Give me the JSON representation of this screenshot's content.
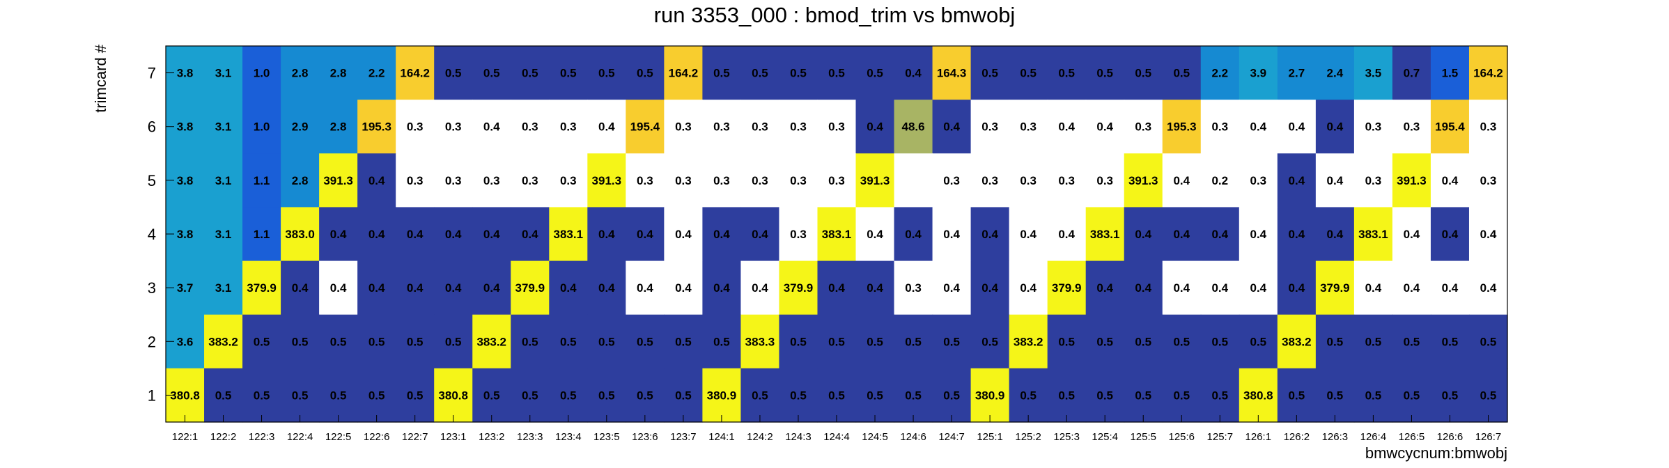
{
  "chart_data": {
    "type": "heatmap",
    "title": "run 3353_000 : bmod_trim vs bmwobj",
    "xlabel": "bmwcycnum:bmwobj",
    "ylabel": "trimcard #",
    "x_categories": [
      "122:1",
      "122:2",
      "122:3",
      "122:4",
      "122:5",
      "122:6",
      "122:7",
      "123:1",
      "123:2",
      "123:3",
      "123:4",
      "123:5",
      "123:6",
      "123:7",
      "124:1",
      "124:2",
      "124:3",
      "124:4",
      "124:5",
      "124:6",
      "124:7",
      "125:1",
      "125:2",
      "125:3",
      "125:4",
      "125:5",
      "125:6",
      "125:7",
      "126:1",
      "126:2",
      "126:3",
      "126:4",
      "126:5",
      "126:6",
      "126:7"
    ],
    "y_categories": [
      "1",
      "2",
      "3",
      "4",
      "5",
      "6",
      "7"
    ],
    "rows": [
      {
        "y": "7",
        "values": [
          3.8,
          3.1,
          1.0,
          2.8,
          2.8,
          2.2,
          164.2,
          0.5,
          0.5,
          0.5,
          0.5,
          0.5,
          0.5,
          164.2,
          0.5,
          0.5,
          0.5,
          0.5,
          0.5,
          0.4,
          164.3,
          0.5,
          0.5,
          0.5,
          0.5,
          0.5,
          0.5,
          2.2,
          3.9,
          2.7,
          2.4,
          3.5,
          0.7,
          1.5,
          164.2
        ]
      },
      {
        "y": "6",
        "values": [
          3.8,
          3.1,
          1.0,
          2.9,
          2.8,
          195.3,
          0.3,
          0.3,
          0.4,
          0.3,
          0.3,
          0.4,
          195.4,
          0.3,
          0.3,
          0.3,
          0.3,
          0.3,
          0.4,
          48.6,
          0.4,
          0.3,
          0.3,
          0.4,
          0.4,
          0.3,
          195.3,
          0.3,
          0.4,
          0.4,
          0.4,
          0.3,
          0.3,
          195.4,
          0.3
        ]
      },
      {
        "y": "5",
        "values": [
          3.8,
          3.1,
          1.1,
          2.8,
          391.3,
          0.4,
          0.3,
          0.3,
          0.3,
          0.3,
          0.3,
          391.3,
          0.3,
          0.3,
          0.3,
          0.3,
          0.3,
          0.3,
          391.3,
          null,
          0.3,
          0.3,
          0.3,
          0.3,
          0.3,
          391.3,
          0.4,
          0.2,
          0.3,
          0.4,
          0.4,
          0.3,
          391.3,
          0.4,
          0.3
        ]
      },
      {
        "y": "4",
        "values": [
          3.8,
          3.1,
          1.1,
          383.0,
          0.4,
          0.4,
          0.4,
          0.4,
          0.4,
          0.4,
          383.1,
          0.4,
          0.4,
          0.4,
          0.4,
          0.4,
          0.3,
          383.1,
          0.4,
          0.4,
          0.4,
          0.4,
          0.4,
          0.4,
          383.1,
          0.4,
          0.4,
          0.4,
          0.4,
          0.4,
          0.4,
          383.1,
          0.4,
          0.4,
          0.4
        ]
      },
      {
        "y": "3",
        "values": [
          3.7,
          3.1,
          379.9,
          0.4,
          0.4,
          0.4,
          0.4,
          0.4,
          0.4,
          379.9,
          0.4,
          0.4,
          0.4,
          0.4,
          0.4,
          0.4,
          379.9,
          0.4,
          0.4,
          0.3,
          0.4,
          0.4,
          0.4,
          379.9,
          0.4,
          0.4,
          0.4,
          0.4,
          0.4,
          0.4,
          379.9,
          0.4,
          0.4,
          0.4,
          0.4
        ]
      },
      {
        "y": "2",
        "values": [
          3.6,
          383.2,
          0.5,
          0.5,
          0.5,
          0.5,
          0.5,
          0.5,
          383.2,
          0.5,
          0.5,
          0.5,
          0.5,
          0.5,
          0.5,
          383.3,
          0.5,
          0.5,
          0.5,
          0.5,
          0.5,
          0.5,
          383.2,
          0.5,
          0.5,
          0.5,
          0.5,
          0.5,
          0.5,
          383.2,
          0.5,
          0.5,
          0.5,
          0.5,
          0.5
        ]
      },
      {
        "y": "1",
        "values": [
          380.8,
          0.5,
          0.5,
          0.5,
          0.5,
          0.5,
          0.5,
          380.8,
          0.5,
          0.5,
          0.5,
          0.5,
          0.5,
          0.5,
          380.9,
          0.5,
          0.5,
          0.5,
          0.5,
          0.5,
          0.5,
          380.9,
          0.5,
          0.5,
          0.5,
          0.5,
          0.5,
          0.5,
          380.8,
          0.5,
          0.5,
          0.5,
          0.5,
          0.5,
          0.5
        ]
      }
    ],
    "white_cells": [
      "122:5|3",
      "122:7|5",
      "123:1|5",
      "123:2|5",
      "123:3|5",
      "123:4|5",
      "123:6|5",
      "123:7|5",
      "124:1|5",
      "124:2|5",
      "124:3|5",
      "124:4|5",
      "124:7|5",
      "125:1|5",
      "125:2|5",
      "125:3|5",
      "125:4|5",
      "125:6|5",
      "125:7|5",
      "126:1|5",
      "126:3|5",
      "126:4|5",
      "126:6|5",
      "126:7|5",
      "122:7|6",
      "123:1|6",
      "123:2|6",
      "123:3|6",
      "123:4|6",
      "123:5|6",
      "123:7|6",
      "124:1|6",
      "124:2|6",
      "124:3|6",
      "124:4|6",
      "125:1|6",
      "125:2|6",
      "125:3|6",
      "125:4|6",
      "125:5|6",
      "125:7|6",
      "126:1|6",
      "126:2|6",
      "126:4|6",
      "126:5|6",
      "126:7|6",
      "123:7|4",
      "124:3|4",
      "124:5|4",
      "124:7|4",
      "125:2|4",
      "125:3|4",
      "126:1|4",
      "126:5|4",
      "126:7|4",
      "123:6|3",
      "123:7|3",
      "124:2|3",
      "124:6|3",
      "124:7|3",
      "125:2|3",
      "126:1|3",
      "126:4|3",
      "126:5|3",
      "126:6|3",
      "126:7|3",
      "125:6|3",
      "125:7|3"
    ],
    "palette": {
      "low": "#2e3e9e",
      "blue": "#1a5fd8",
      "mid_blue": "#168ad2",
      "cyan": "#1aa0d0",
      "olive": "#a8b464",
      "orange": "#f8cd2e",
      "yellow": "#f5f518",
      "empty": "#ffffff",
      "grid_line": "#000000"
    },
    "legend": "none",
    "grid": false
  }
}
